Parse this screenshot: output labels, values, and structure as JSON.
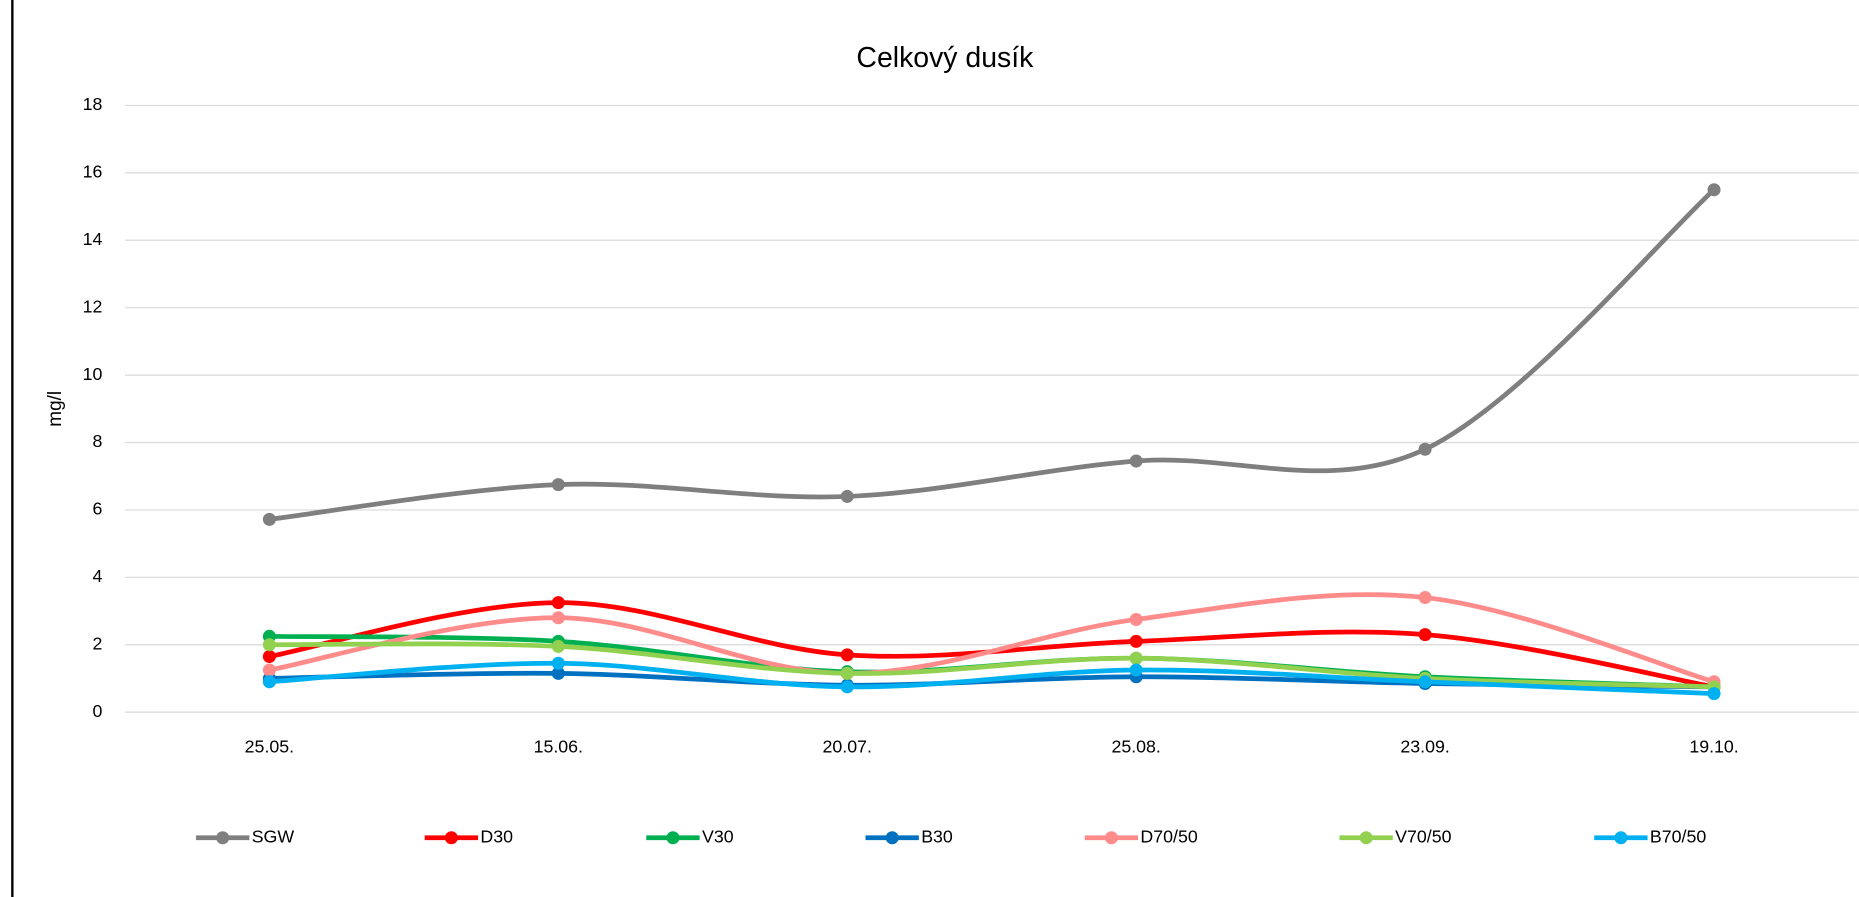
{
  "chart_data": {
    "type": "line",
    "title": "Celkový dusík",
    "y_label": "mg/l",
    "categories": [
      "25.05.",
      "15.06.",
      "20.07.",
      "25.08.",
      "23.09.",
      "19.10."
    ],
    "series": [
      {
        "name": "SGW",
        "color": "#7f7f7f",
        "values": [
          5.72,
          6.75,
          6.4,
          7.45,
          7.8,
          15.5
        ]
      },
      {
        "name": "D30",
        "color": "#ff0000",
        "values": [
          1.65,
          3.25,
          1.7,
          2.1,
          2.3,
          0.75
        ]
      },
      {
        "name": "V30",
        "color": "#00b050",
        "values": [
          2.25,
          2.1,
          1.2,
          1.6,
          1.05,
          0.75
        ]
      },
      {
        "name": "B30",
        "color": "#0070c0",
        "values": [
          1.0,
          1.15,
          0.8,
          1.05,
          0.85,
          0.75
        ]
      },
      {
        "name": "D70/50",
        "color": "#ff8b8b",
        "values": [
          1.25,
          2.8,
          1.15,
          2.75,
          3.4,
          0.9
        ]
      },
      {
        "name": "V70/50",
        "color": "#92d050",
        "values": [
          2.0,
          1.95,
          1.15,
          1.6,
          1.0,
          0.75
        ]
      },
      {
        "name": "B70/50",
        "color": "#00b0f0",
        "values": [
          0.9,
          1.45,
          0.75,
          1.25,
          0.9,
          0.55
        ]
      }
    ],
    "ylim": [
      0,
      18
    ],
    "yticks": [
      0,
      2,
      4,
      6,
      8,
      10,
      12,
      14,
      16,
      18
    ],
    "grid": true,
    "smooth": true,
    "legend_position": "bottom"
  }
}
